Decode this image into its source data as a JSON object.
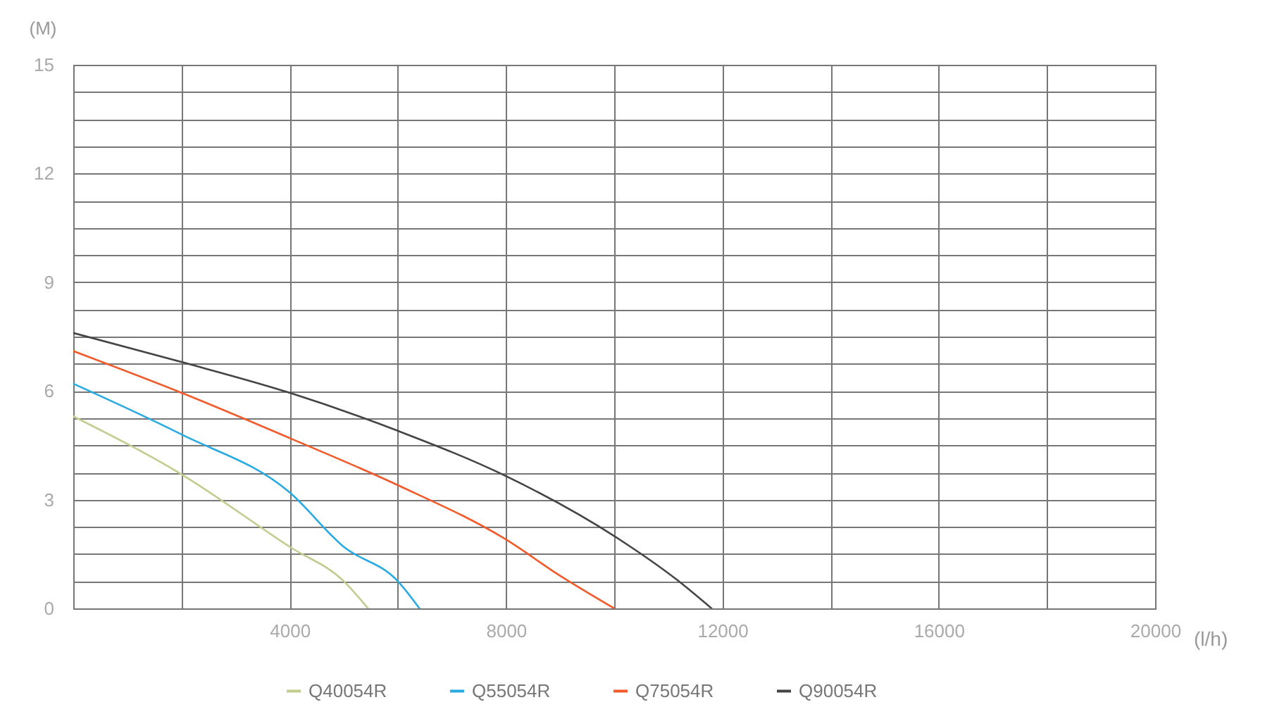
{
  "chart_data": {
    "type": "line",
    "xlabel": "(l/h)",
    "ylabel": "(M)",
    "xlim": [
      0,
      20000
    ],
    "ylim": [
      0,
      15
    ],
    "xticks": [
      {
        "value": 0,
        "label": null
      },
      {
        "value": 2000,
        "label": null
      },
      4000,
      {
        "value": 6000,
        "label": null
      },
      8000,
      {
        "value": 10000,
        "label": null
      },
      12000,
      {
        "value": 14000,
        "label": null
      },
      16000,
      {
        "value": 18000,
        "label": null
      },
      20000
    ],
    "yticks": [
      0,
      {
        "value": 0.75,
        "label": null
      },
      {
        "value": 1.5,
        "label": null
      },
      {
        "value": 2.25,
        "label": null
      },
      3,
      {
        "value": 3.75,
        "label": null
      },
      {
        "value": 4.5,
        "label": null
      },
      {
        "value": 5.25,
        "label": null
      },
      6,
      {
        "value": 6.75,
        "label": null
      },
      {
        "value": 7.5,
        "label": null
      },
      {
        "value": 8.25,
        "label": null
      },
      9,
      {
        "value": 9.75,
        "label": null
      },
      {
        "value": 10.5,
        "label": null
      },
      {
        "value": 11.25,
        "label": null
      },
      12,
      {
        "value": 12.75,
        "label": null
      },
      {
        "value": 13.5,
        "label": null
      },
      {
        "value": 14.25,
        "label": null
      },
      15
    ],
    "grid": true,
    "legend": "bottom",
    "marker": "none",
    "line_style": "solid",
    "series": [
      {
        "name": "Q40054R",
        "color": "#c2cc8f",
        "x": [
          0,
          2000,
          4000,
          5000,
          5450
        ],
        "values": [
          5.3,
          3.7,
          1.7,
          0.75,
          0
        ]
      },
      {
        "name": "Q55054R",
        "color": "#29abe2",
        "x": [
          0,
          2000,
          4000,
          5000,
          6000,
          6400
        ],
        "values": [
          6.2,
          4.8,
          3.2,
          1.7,
          0.75,
          0
        ]
      },
      {
        "name": "Q75054R",
        "color": "#f15a2b",
        "x": [
          0,
          2000,
          4000,
          6000,
          8000,
          9000,
          10000
        ],
        "values": [
          7.1,
          5.95,
          4.7,
          3.4,
          1.9,
          0.9,
          0
        ]
      },
      {
        "name": "Q90054R",
        "color": "#444444",
        "x": [
          0,
          2000,
          4000,
          6000,
          8000,
          10100,
          11150,
          11800
        ],
        "values": [
          7.6,
          6.8,
          5.95,
          4.9,
          3.65,
          1.9,
          0.8,
          0
        ]
      }
    ]
  }
}
